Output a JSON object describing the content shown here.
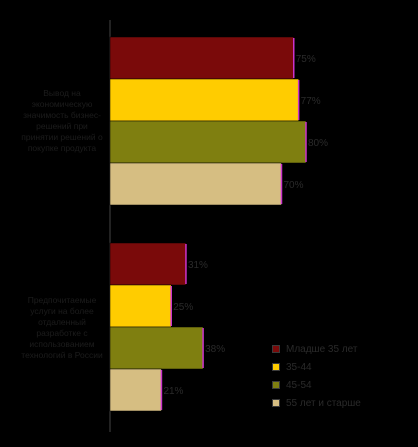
{
  "chart_data": {
    "type": "bar",
    "orientation": "horizontal",
    "categories": [
      "Вывод на экономическую значимость бизнес-решений при принятии решений о покупке продукта",
      "Предпочитаемые услуги на более отдаленный разработке с использованием технологий в России"
    ],
    "series": [
      {
        "name": "Младше 35 лет",
        "color": "#7a0a0a",
        "values": [
          75,
          31
        ],
        "labels": [
          "75%",
          "31%"
        ]
      },
      {
        "name": "35-44",
        "color": "#ffcc00",
        "values": [
          77,
          25
        ],
        "labels": [
          "77%",
          "25%"
        ]
      },
      {
        "name": "45-54",
        "color": "#7f7f10",
        "values": [
          80,
          38
        ],
        "labels": [
          "80%",
          "38%"
        ]
      },
      {
        "name": "55 лет и старше",
        "color": "#d6be82",
        "values": [
          70,
          21
        ],
        "labels": [
          "70%",
          "21%"
        ]
      }
    ],
    "xlim": [
      0,
      100
    ],
    "grid": false,
    "legend_position": "bottom-right"
  }
}
